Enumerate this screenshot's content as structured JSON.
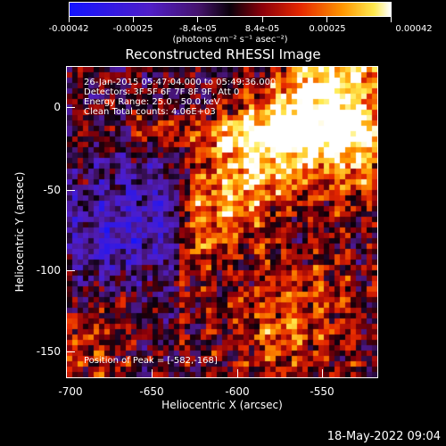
{
  "colorbar": {
    "tick_labels": [
      "-0.00042",
      "-0.00025",
      "-8.4e-05",
      "8.4e-05",
      "0.00025",
      "0.00042"
    ],
    "units": "(photons cm⁻² s⁻¹ asec⁻²)",
    "min": -0.00042,
    "max": 0.00042
  },
  "plot": {
    "title": "Reconstructed RHESSI Image",
    "info_lines": [
      "26-Jan-2015 05:47:04.000 to 05:49:36.000",
      "Detectors: 3F 5F 6F 7F 8F 9F, Att 0",
      "Energy Range: 25.0 - 50.0 keV",
      "Clean     Total counts: 4.06E+03"
    ],
    "peak_label": "Position of Peak = [-582,-168]",
    "xaxis_title": "Heliocentric X (arcsec)",
    "yaxis_title": "Heliocentric Y (arcsec)",
    "x_tick_labels": [
      "-700",
      "-650",
      "-600",
      "-550"
    ],
    "y_tick_labels": [
      "0",
      "-50",
      "-100",
      "-150"
    ]
  },
  "footer": {
    "timestamp": "18-May-2022 09:04"
  }
}
